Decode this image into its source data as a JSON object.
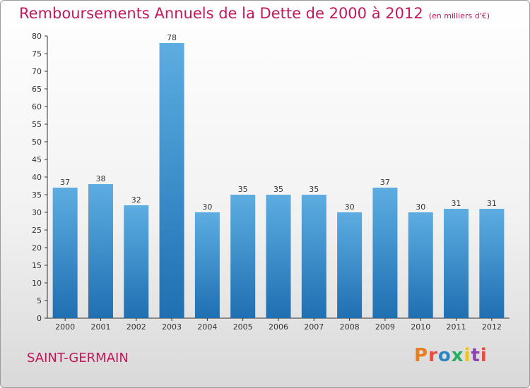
{
  "header": {
    "title": "Remboursements Annuels de la Dette de 2000 à 2012",
    "unit": "(en milliers d'€)"
  },
  "footer": {
    "town": "SAINT-GERMAIN",
    "logo": "Proxiti"
  },
  "colors": {
    "title": "#c2185b",
    "bar_top": "#5dade2",
    "bar_bottom": "#1f6fb2",
    "logo": [
      "#e67e22",
      "#e74c3c",
      "#2e86c1",
      "#27ae60",
      "#f1c40f",
      "#8e44ad",
      "#e74c3c"
    ]
  },
  "chart_data": {
    "type": "bar",
    "title": "Remboursements Annuels de la Dette de 2000 à 2012",
    "categories": [
      "2000",
      "2001",
      "2002",
      "2003",
      "2004",
      "2005",
      "2006",
      "2007",
      "2008",
      "2009",
      "2010",
      "2011",
      "2012"
    ],
    "values": [
      37,
      38,
      32,
      78,
      30,
      35,
      35,
      35,
      30,
      37,
      30,
      31,
      31
    ],
    "ylim": [
      0,
      80
    ],
    "yticks": [
      0,
      5,
      10,
      15,
      20,
      25,
      30,
      35,
      40,
      45,
      50,
      55,
      60,
      65,
      70,
      75,
      80
    ],
    "grid": false,
    "xlabel": "",
    "ylabel": ""
  }
}
